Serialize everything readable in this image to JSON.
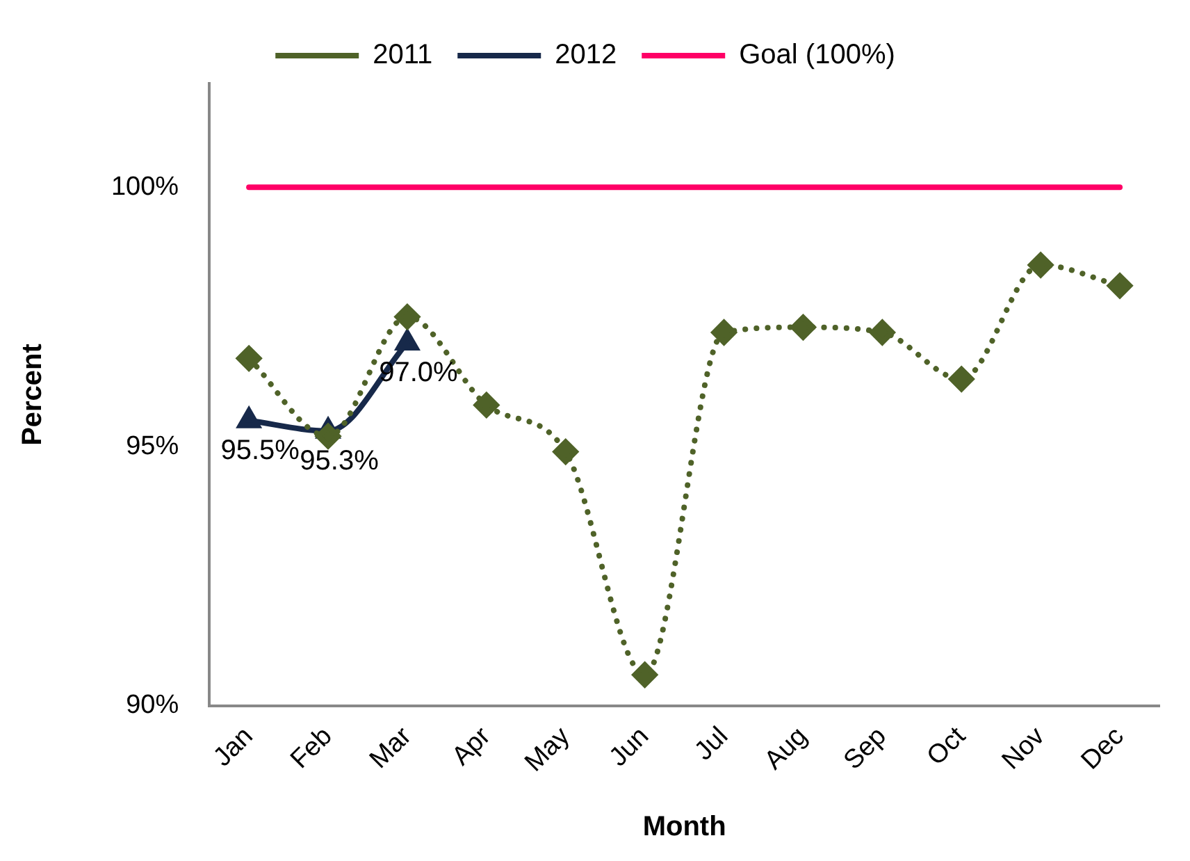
{
  "chart_data": {
    "type": "line",
    "xlabel": "Month",
    "ylabel": "Percent",
    "categories": [
      "Jan",
      "Feb",
      "Mar",
      "Apr",
      "May",
      "Jun",
      "Jul",
      "Aug",
      "Sep",
      "Oct",
      "Nov",
      "Dec"
    ],
    "series": [
      {
        "name": "2011",
        "color": "#4f6228",
        "marker": "diamond",
        "line_style": "dotted",
        "values": [
          96.7,
          95.2,
          97.5,
          95.8,
          94.9,
          90.6,
          97.2,
          97.3,
          97.2,
          96.3,
          98.5,
          98.1
        ]
      },
      {
        "name": "2012",
        "color": "#17294a",
        "marker": "triangle",
        "line_style": "solid",
        "values": [
          95.5,
          95.3,
          97.0,
          null,
          null,
          null,
          null,
          null,
          null,
          null,
          null,
          null
        ],
        "value_labels": [
          "95.5%",
          "95.3%",
          "97.0%",
          null,
          null,
          null,
          null,
          null,
          null,
          null,
          null,
          null
        ]
      },
      {
        "name": "Goal (100%)",
        "color": "#ff0066",
        "marker": "none",
        "line_style": "solid",
        "values": [
          100,
          100,
          100,
          100,
          100,
          100,
          100,
          100,
          100,
          100,
          100,
          100
        ]
      }
    ],
    "ylim": [
      90,
      102
    ],
    "yticks": [
      {
        "value": 90,
        "label": "90%"
      },
      {
        "value": 95,
        "label": "95%"
      },
      {
        "value": 100,
        "label": "100%"
      }
    ],
    "grid": false,
    "legend": "top"
  }
}
